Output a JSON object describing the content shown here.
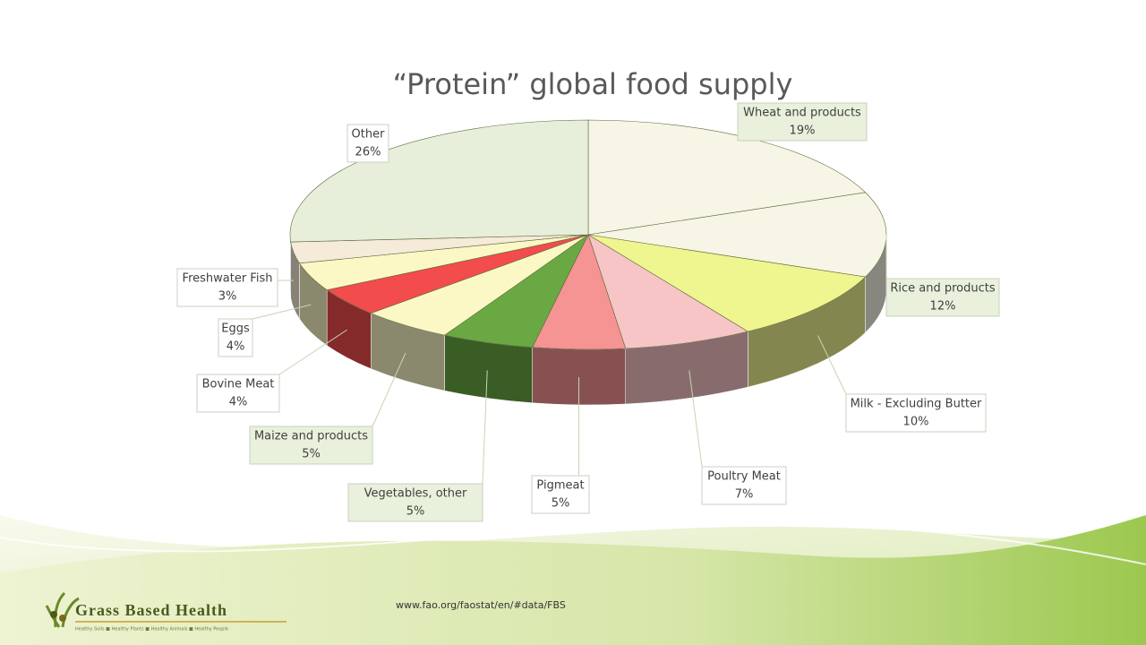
{
  "chart_data": {
    "type": "pie3d",
    "title": "“Protein” global food supply",
    "categories": [
      "Wheat and products",
      "Rice and products",
      "Milk - Excluding Butter",
      "Poultry Meat",
      "Pigmeat",
      "Vegetables, other",
      "Maize and products",
      "Bovine Meat",
      "Eggs",
      "Freshwater Fish",
      "Other"
    ],
    "values": [
      19,
      12,
      10,
      7,
      5,
      5,
      5,
      4,
      4,
      3,
      26
    ],
    "value_labels": [
      "19%",
      "12%",
      "10%",
      "7%",
      "5%",
      "5%",
      "5%",
      "4%",
      "4%",
      "3%",
      "26%"
    ],
    "colors": [
      "#f7f5e6",
      "#f7f5e6",
      "#eff58f",
      "#f7c5c6",
      "#f69393",
      "#6aa843",
      "#fbf8c6",
      "#f24c4c",
      "#fbf8c6",
      "#f6ead8",
      "#e7efda"
    ]
  },
  "footer": {
    "source": "www.fao.org/faostat/en/#data/FBS",
    "logo": "Grass Based Health",
    "tagline": "Healthy Soils ■ Healthy Plants ■ Healthy Animals ■ Healthy People"
  }
}
